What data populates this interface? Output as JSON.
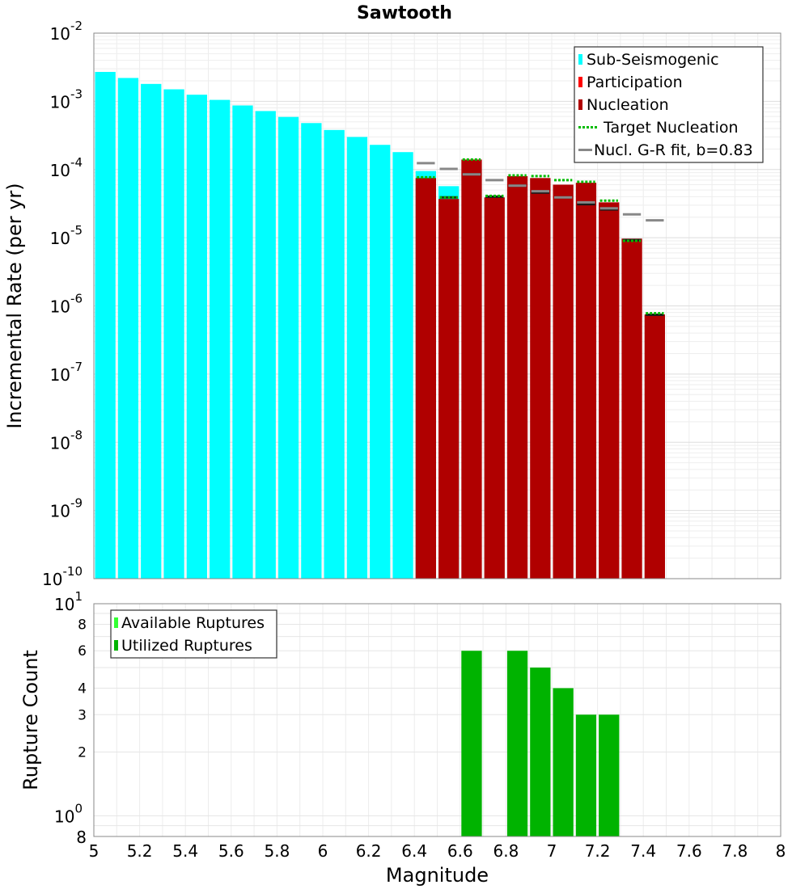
{
  "title": "Sawtooth",
  "colors": {
    "sub_seismogenic": "#00ffff",
    "participation": "#ff0000",
    "nucleation": "#b00000",
    "target_nucleation": "#00bb00",
    "gr_fit": "#888888",
    "available": "#33ff33",
    "utilized": "#00b300"
  },
  "chart_data": [
    {
      "type": "bar",
      "name": "rate-panel",
      "ylabel": "Incremental Rate (per yr)",
      "xlabel": "",
      "y_scale": "log",
      "xlim": [
        5,
        8
      ],
      "ylim": [
        1e-10,
        0.01
      ],
      "y_ticks": [
        {
          "base": "10",
          "exp": "-10"
        },
        {
          "base": "10",
          "exp": "-9"
        },
        {
          "base": "10",
          "exp": "-8"
        },
        {
          "base": "10",
          "exp": "-7"
        },
        {
          "base": "10",
          "exp": "-6"
        },
        {
          "base": "10",
          "exp": "-5"
        },
        {
          "base": "10",
          "exp": "-4"
        },
        {
          "base": "10",
          "exp": "-3"
        },
        {
          "base": "10",
          "exp": "-2"
        }
      ],
      "bin_width": 0.1,
      "legend_position": "top-right",
      "legend": [
        {
          "label": "Sub-Seismogenic",
          "kind": "box",
          "color_key": "sub_seismogenic"
        },
        {
          "label": "Participation",
          "kind": "box",
          "color_key": "participation"
        },
        {
          "label": "Nucleation",
          "kind": "box",
          "color_key": "nucleation"
        },
        {
          "label": "Target Nucleation",
          "kind": "dotted",
          "color_key": "target_nucleation"
        },
        {
          "label": "Nucl. G-R fit, b=0.83",
          "kind": "line",
          "color_key": "gr_fit"
        }
      ],
      "sub_seismogenic": {
        "x": [
          5.05,
          5.15,
          5.25,
          5.35,
          5.45,
          5.55,
          5.65,
          5.75,
          5.85,
          5.95,
          6.05,
          6.15,
          6.25,
          6.35,
          6.45,
          6.55
        ],
        "values": [
          0.0027,
          0.0022,
          0.0018,
          0.0015,
          0.00125,
          0.00105,
          0.00087,
          0.00072,
          0.00059,
          0.00048,
          0.00038,
          0.0003,
          0.00023,
          0.00018,
          9.5e-05,
          5.7e-05
        ]
      },
      "nucleation": {
        "x": [
          6.45,
          6.55,
          6.65,
          6.75,
          6.85,
          6.95,
          7.05,
          7.15,
          7.25,
          7.35,
          7.45
        ],
        "values": [
          7.5e-05,
          3.7e-05,
          0.00014,
          3.9e-05,
          8e-05,
          7.5e-05,
          6e-05,
          6.4e-05,
          3.3e-05,
          9.7e-06,
          7.5e-07
        ]
      },
      "participation": {
        "x": [
          6.55,
          6.65,
          6.75,
          6.85,
          6.95,
          7.05,
          7.15,
          7.25,
          7.35,
          7.45
        ],
        "values": [
          3.9e-05,
          8.5e-05,
          4e-05,
          5.8e-05,
          4.6e-05,
          3.9e-05,
          3.1e-05,
          2.6e-05,
          9.2e-06,
          7.4e-07
        ]
      },
      "target_nucleation": {
        "x": [
          6.45,
          6.55,
          6.65,
          6.75,
          6.85,
          6.95,
          7.05,
          7.15,
          7.25,
          7.35,
          7.45
        ],
        "values": [
          7.7e-05,
          3.9e-05,
          0.00014,
          4.1e-05,
          8.2e-05,
          8e-05,
          7e-05,
          6.6e-05,
          3.5e-05,
          9e-06,
          7.8e-07
        ]
      },
      "gr_fit": {
        "x": [
          6.45,
          6.55,
          6.65,
          6.75,
          6.85,
          6.95,
          7.05,
          7.15,
          7.25,
          7.35,
          7.45
        ],
        "values": [
          0.000124,
          0.000102,
          8.5e-05,
          7e-05,
          5.8e-05,
          4.8e-05,
          3.9e-05,
          3.3e-05,
          2.7e-05,
          2.2e-05,
          1.8e-05
        ]
      }
    },
    {
      "type": "bar",
      "name": "count-panel",
      "ylabel": "Rupture Count",
      "xlabel": "Magnitude",
      "y_scale": "log",
      "xlim": [
        5,
        8
      ],
      "ylim": [
        0.8,
        10
      ],
      "x_ticks": [
        "5",
        "5.2",
        "5.4",
        "5.6",
        "5.8",
        "6",
        "6.2",
        "6.4",
        "6.6",
        "6.8",
        "7",
        "7.2",
        "7.4",
        "7.6",
        "7.8",
        "8"
      ],
      "y_major_ticks": [
        {
          "base": "10",
          "exp": "0",
          "value": 1
        },
        {
          "base": "10",
          "exp": "1",
          "value": 10
        }
      ],
      "y_minor_ticks": [
        {
          "label": "8",
          "value": 0.8
        },
        {
          "label": "2",
          "value": 2
        },
        {
          "label": "3",
          "value": 3
        },
        {
          "label": "4",
          "value": 4
        },
        {
          "label": "6",
          "value": 6
        },
        {
          "label": "8",
          "value": 8
        }
      ],
      "bin_width": 0.1,
      "legend_position": "top-left",
      "legend": [
        {
          "label": "Available Ruptures",
          "color_key": "available"
        },
        {
          "label": "Utilized Ruptures",
          "color_key": "utilized"
        }
      ],
      "utilized": {
        "x": [
          6.65,
          6.85,
          6.95,
          7.05,
          7.15,
          7.25
        ],
        "values": [
          6,
          6,
          5,
          4,
          3,
          3
        ]
      }
    }
  ]
}
